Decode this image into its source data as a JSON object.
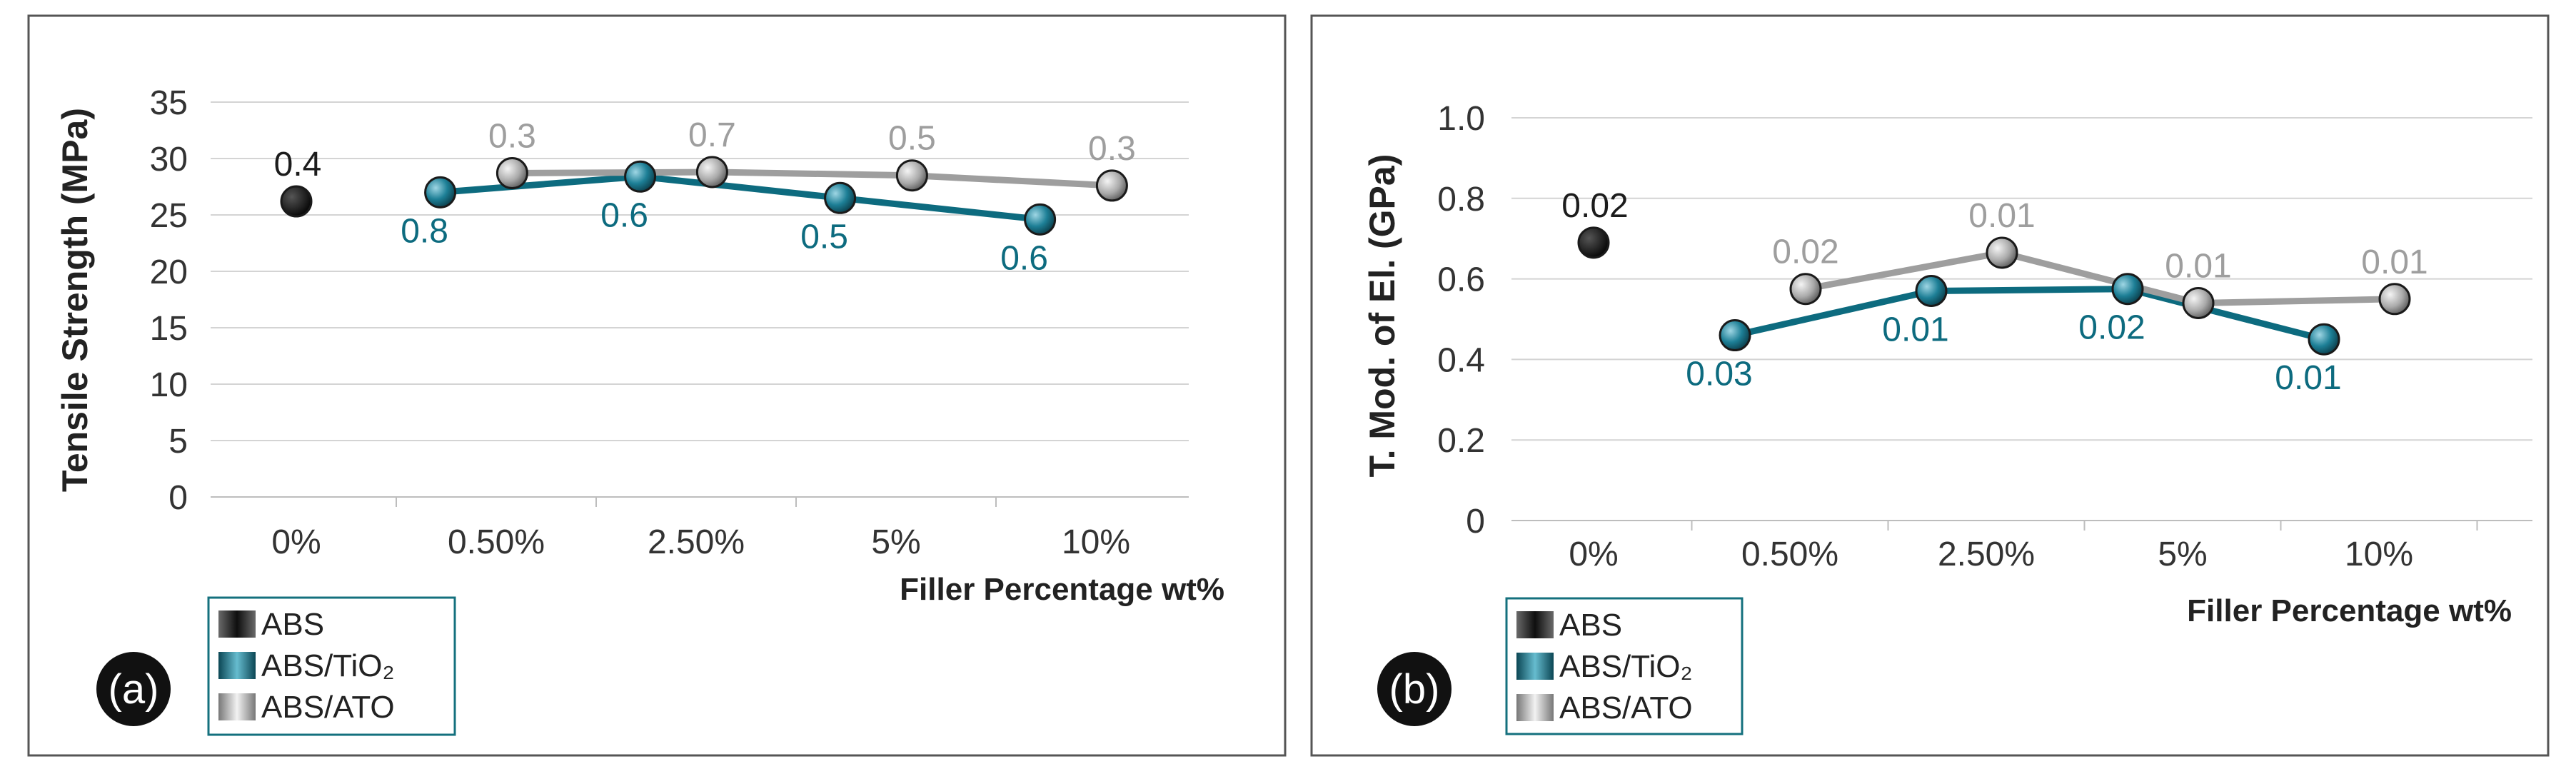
{
  "colors": {
    "abs": "#1c1c1c",
    "tio2": "#0d6b7f",
    "ato": "#9e9e9e",
    "frame": "#555555",
    "grid": "#d4d4d4",
    "legend_border": "#14707e"
  },
  "chart_data": [
    {
      "panel_label": "(a)",
      "type": "line",
      "title": "",
      "xlabel": "Filler Percentage wt%",
      "ylabel": "Tensile Strength (MPa)",
      "ylim": [
        0,
        35
      ],
      "yticks": [
        0,
        5,
        10,
        15,
        20,
        25,
        30,
        35
      ],
      "yticklabels": [
        "0",
        "5",
        "10",
        "15",
        "20",
        "25",
        "30",
        "35"
      ],
      "grid": true,
      "categories": [
        "0%",
        "0.50%",
        "2.50%",
        "5%",
        "10%"
      ],
      "legend_position": "bottom-left",
      "series": [
        {
          "key": "abs",
          "name": "ABS",
          "x": [
            0
          ],
          "values": [
            26.2
          ],
          "labels": [
            "0.4"
          ],
          "label_side": [
            "above"
          ]
        },
        {
          "key": "tio2",
          "name": "ABS/TiO₂",
          "x": [
            0.72,
            1.72,
            2.72,
            3.72
          ],
          "values": [
            27.0,
            28.4,
            26.5,
            24.6
          ],
          "labels": [
            "0.8",
            "0.6",
            "0.5",
            "0.6"
          ],
          "label_side": [
            "below",
            "below",
            "below",
            "below"
          ]
        },
        {
          "key": "ato",
          "name": "ABS/ATO",
          "x": [
            1.08,
            2.08,
            3.08,
            4.08
          ],
          "values": [
            28.7,
            28.8,
            28.5,
            27.6
          ],
          "labels": [
            "0.3",
            "0.7",
            "0.5",
            "0.3"
          ],
          "label_side": [
            "above",
            "above",
            "above",
            "above"
          ]
        }
      ]
    },
    {
      "panel_label": "(b)",
      "type": "line",
      "title": "",
      "xlabel": "Filler Percentage wt%",
      "ylabel": "T. Mod. of El. (GPa)",
      "ylim": [
        0,
        1.0
      ],
      "yticks": [
        0,
        0.2,
        0.4,
        0.6,
        0.8,
        1.0
      ],
      "yticklabels": [
        "0",
        "0.2",
        "0.4",
        "0.6",
        "0.8",
        "1.0"
      ],
      "grid": true,
      "categories": [
        "0%",
        "0.50%",
        "2.50%",
        "5%",
        "10%"
      ],
      "legend_position": "bottom-left",
      "series": [
        {
          "key": "abs",
          "name": "ABS",
          "x": [
            0
          ],
          "values": [
            0.69
          ],
          "labels": [
            "0.02"
          ],
          "label_side": [
            "above"
          ]
        },
        {
          "key": "tio2",
          "name": "ABS/TiO₂",
          "x": [
            0.72,
            1.72,
            2.72,
            3.72
          ],
          "values": [
            0.46,
            0.57,
            0.575,
            0.45
          ],
          "labels": [
            "0.03",
            "0.01",
            "0.02",
            "0.01"
          ],
          "label_side": [
            "below",
            "below",
            "below",
            "below"
          ]
        },
        {
          "key": "ato",
          "name": "ABS/ATO",
          "x": [
            1.08,
            2.08,
            3.08,
            4.08
          ],
          "values": [
            0.575,
            0.665,
            0.54,
            0.55
          ],
          "labels": [
            "0.02",
            "0.01",
            "0.01",
            "0.01"
          ],
          "label_side": [
            "above",
            "above",
            "above",
            "above"
          ]
        }
      ]
    }
  ]
}
